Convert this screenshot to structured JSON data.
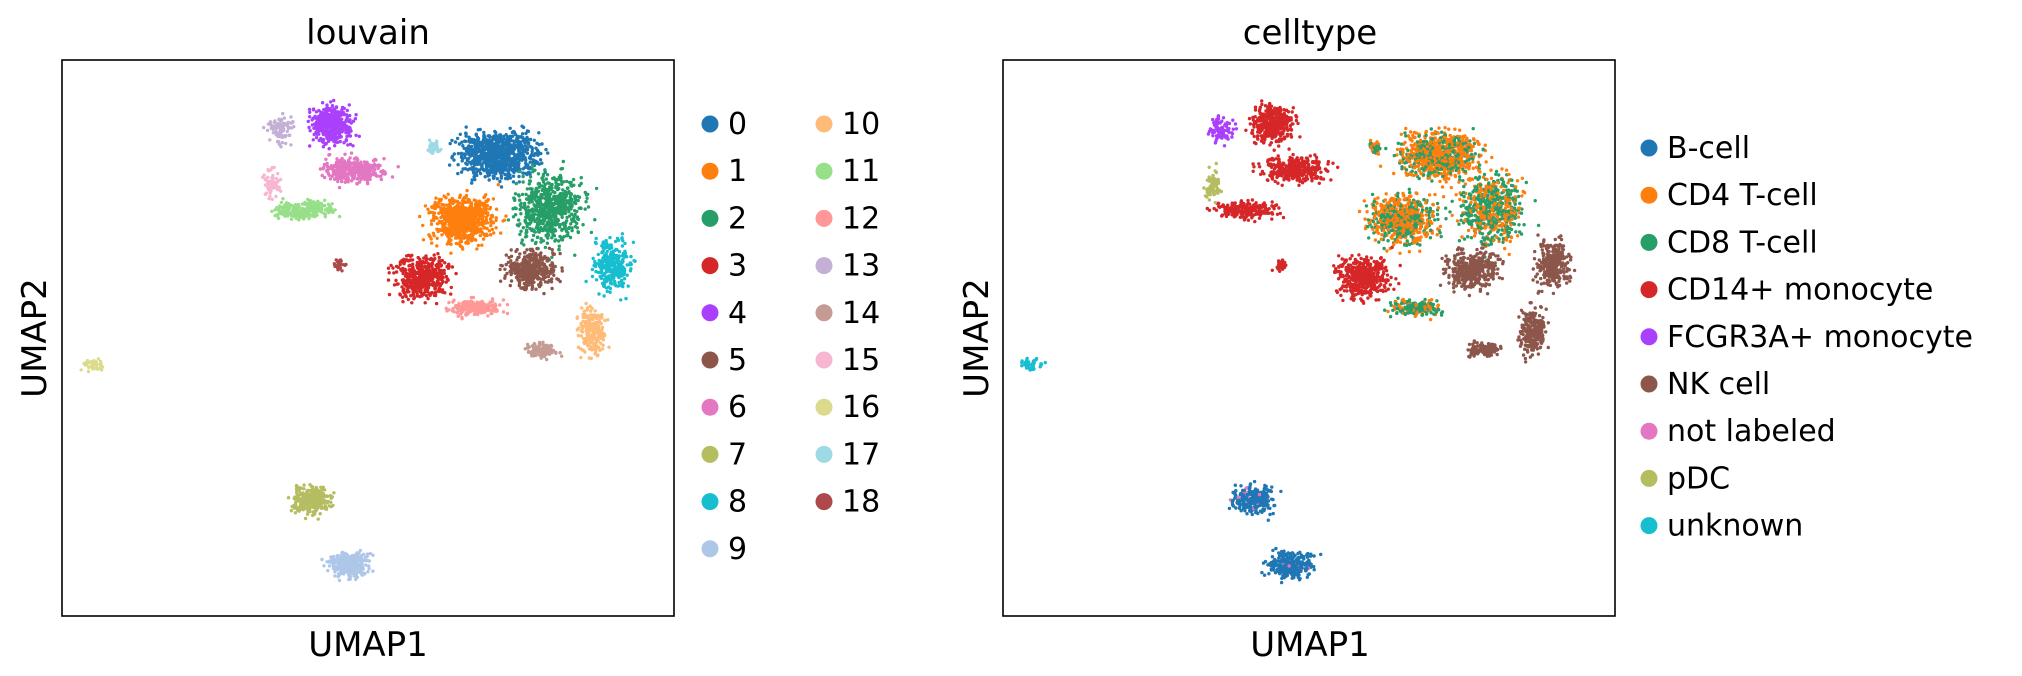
{
  "chart_data": [
    {
      "type": "scatter",
      "title": "louvain",
      "xlabel": "UMAP1",
      "ylabel": "UMAP2",
      "grid": false,
      "xticks": [],
      "yticks": [],
      "legend_position": "right",
      "legend": [
        {
          "label": "0",
          "color": "#1f77b4"
        },
        {
          "label": "1",
          "color": "#ff7f0e"
        },
        {
          "label": "2",
          "color": "#279e68"
        },
        {
          "label": "3",
          "color": "#d62728"
        },
        {
          "label": "4",
          "color": "#aa40fc"
        },
        {
          "label": "5",
          "color": "#8c564b"
        },
        {
          "label": "6",
          "color": "#e377c2"
        },
        {
          "label": "7",
          "color": "#b5bd61"
        },
        {
          "label": "8",
          "color": "#17becf"
        },
        {
          "label": "9",
          "color": "#aec7e8"
        },
        {
          "label": "10",
          "color": "#ffbb78"
        },
        {
          "label": "11",
          "color": "#98df8a"
        },
        {
          "label": "12",
          "color": "#ff9896"
        },
        {
          "label": "13",
          "color": "#c5b0d5"
        },
        {
          "label": "14",
          "color": "#c49c94"
        },
        {
          "label": "15",
          "color": "#f7b6d2"
        },
        {
          "label": "16",
          "color": "#dbdb8d"
        },
        {
          "label": "17",
          "color": "#9edae5"
        },
        {
          "label": "18",
          "color": "#ad494a"
        }
      ]
    },
    {
      "type": "scatter",
      "title": "celltype",
      "xlabel": "UMAP1",
      "ylabel": "UMAP2",
      "grid": false,
      "xticks": [],
      "yticks": [],
      "legend_position": "right",
      "legend": [
        {
          "label": "B-cell",
          "color": "#1f77b4"
        },
        {
          "label": "CD4 T-cell",
          "color": "#ff7f0e"
        },
        {
          "label": "CD8 T-cell",
          "color": "#279e68"
        },
        {
          "label": "CD14+ monocyte",
          "color": "#d62728"
        },
        {
          "label": "FCGR3A+ monocyte",
          "color": "#aa40fc"
        },
        {
          "label": "NK cell",
          "color": "#8c564b"
        },
        {
          "label": "not labeled",
          "color": "#e377c2"
        },
        {
          "label": "pDC",
          "color": "#b5bd61"
        },
        {
          "label": "unknown",
          "color": "#17becf"
        }
      ]
    }
  ]
}
